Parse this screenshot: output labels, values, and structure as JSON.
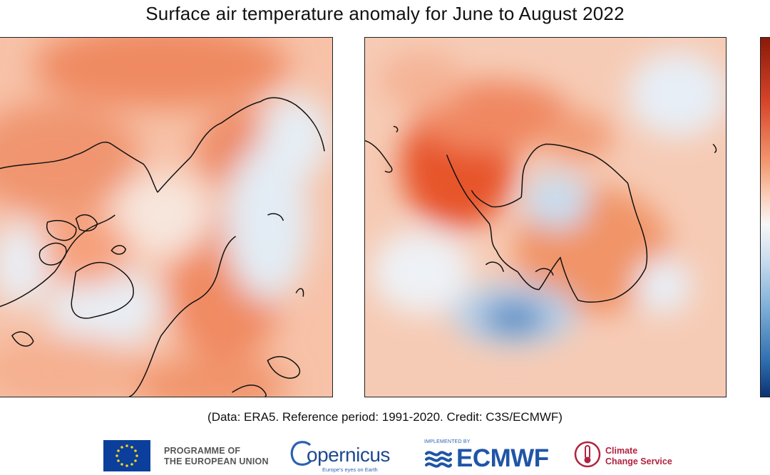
{
  "title": "Surface air temperature anomaly for June to August 2022",
  "maps": [
    {
      "name": "Arctic / Northern Hemisphere polar view",
      "projection": "north-polar stereographic"
    },
    {
      "name": "Antarctic / Southern Hemisphere polar view",
      "projection": "south-polar stereographic"
    }
  ],
  "colorbar": {
    "colors": [
      "#8a1a08",
      "#d8452a",
      "#f39a72",
      "#fbd3bf",
      "#f7f7f7",
      "#c9dcee",
      "#7fb0d8",
      "#2f6fb0",
      "#0b3272"
    ]
  },
  "credit": "(Data: ERA5.  Reference period: 1991-2020.  Credit: C3S/ECMWF)",
  "logos": {
    "eu_line1": "PROGRAMME OF",
    "eu_line2": "THE EUROPEAN UNION",
    "copernicus": "opernicus",
    "copernicus_tagline": "Europe's eyes on Earth",
    "implemented_by": "IMPLEMENTED BY",
    "ecmwf": "ECMWF",
    "ccs_line1": "Climate",
    "ccs_line2": "Change Service"
  },
  "colors": {
    "warm": "#e8582d",
    "cool": "#3d77b8",
    "neutral": "#f8efe9"
  }
}
